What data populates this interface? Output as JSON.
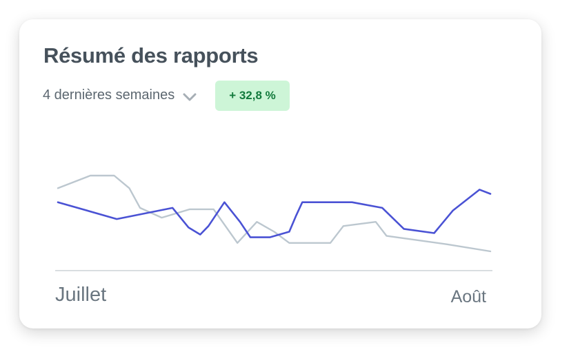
{
  "card": {
    "title": "Résumé des rapports",
    "period_label": "4 dernières semaines",
    "change_badge": "+ 32,8 %"
  },
  "icons": {
    "dropdown": "chevron-down-icon"
  },
  "colors": {
    "current_series": "#4a52d4",
    "previous_series": "#bcc7cf",
    "badge_bg": "#cdf5d7",
    "badge_text": "#127a3c",
    "axis": "#d9dde0"
  },
  "chart_data": {
    "type": "line",
    "x_labels": [
      "Juillet",
      "Août"
    ],
    "grid": false,
    "legend": "none",
    "series": [
      {
        "color": "#4a52d4",
        "values": [
          [
            0.0,
            0.64
          ],
          [
            0.136,
            0.52
          ],
          [
            0.265,
            0.6
          ],
          [
            0.302,
            0.46
          ],
          [
            0.329,
            0.41
          ],
          [
            0.348,
            0.47
          ],
          [
            0.385,
            0.64
          ],
          [
            0.421,
            0.5
          ],
          [
            0.445,
            0.39
          ],
          [
            0.49,
            0.39
          ],
          [
            0.535,
            0.43
          ],
          [
            0.55,
            0.54
          ],
          [
            0.565,
            0.64
          ],
          [
            0.68,
            0.64
          ],
          [
            0.75,
            0.6
          ],
          [
            0.8,
            0.45
          ],
          [
            0.87,
            0.42
          ],
          [
            0.913,
            0.58
          ],
          [
            0.975,
            0.73
          ],
          [
            1.0,
            0.7
          ]
        ]
      },
      {
        "color": "#bcc7cf",
        "values": [
          [
            0.0,
            0.74
          ],
          [
            0.075,
            0.83
          ],
          [
            0.13,
            0.83
          ],
          [
            0.165,
            0.74
          ],
          [
            0.19,
            0.6
          ],
          [
            0.24,
            0.53
          ],
          [
            0.305,
            0.59
          ],
          [
            0.36,
            0.59
          ],
          [
            0.415,
            0.35
          ],
          [
            0.46,
            0.5
          ],
          [
            0.5,
            0.43
          ],
          [
            0.535,
            0.35
          ],
          [
            0.63,
            0.35
          ],
          [
            0.66,
            0.47
          ],
          [
            0.735,
            0.5
          ],
          [
            0.76,
            0.4
          ],
          [
            0.9,
            0.34
          ],
          [
            1.0,
            0.29
          ]
        ]
      }
    ]
  }
}
